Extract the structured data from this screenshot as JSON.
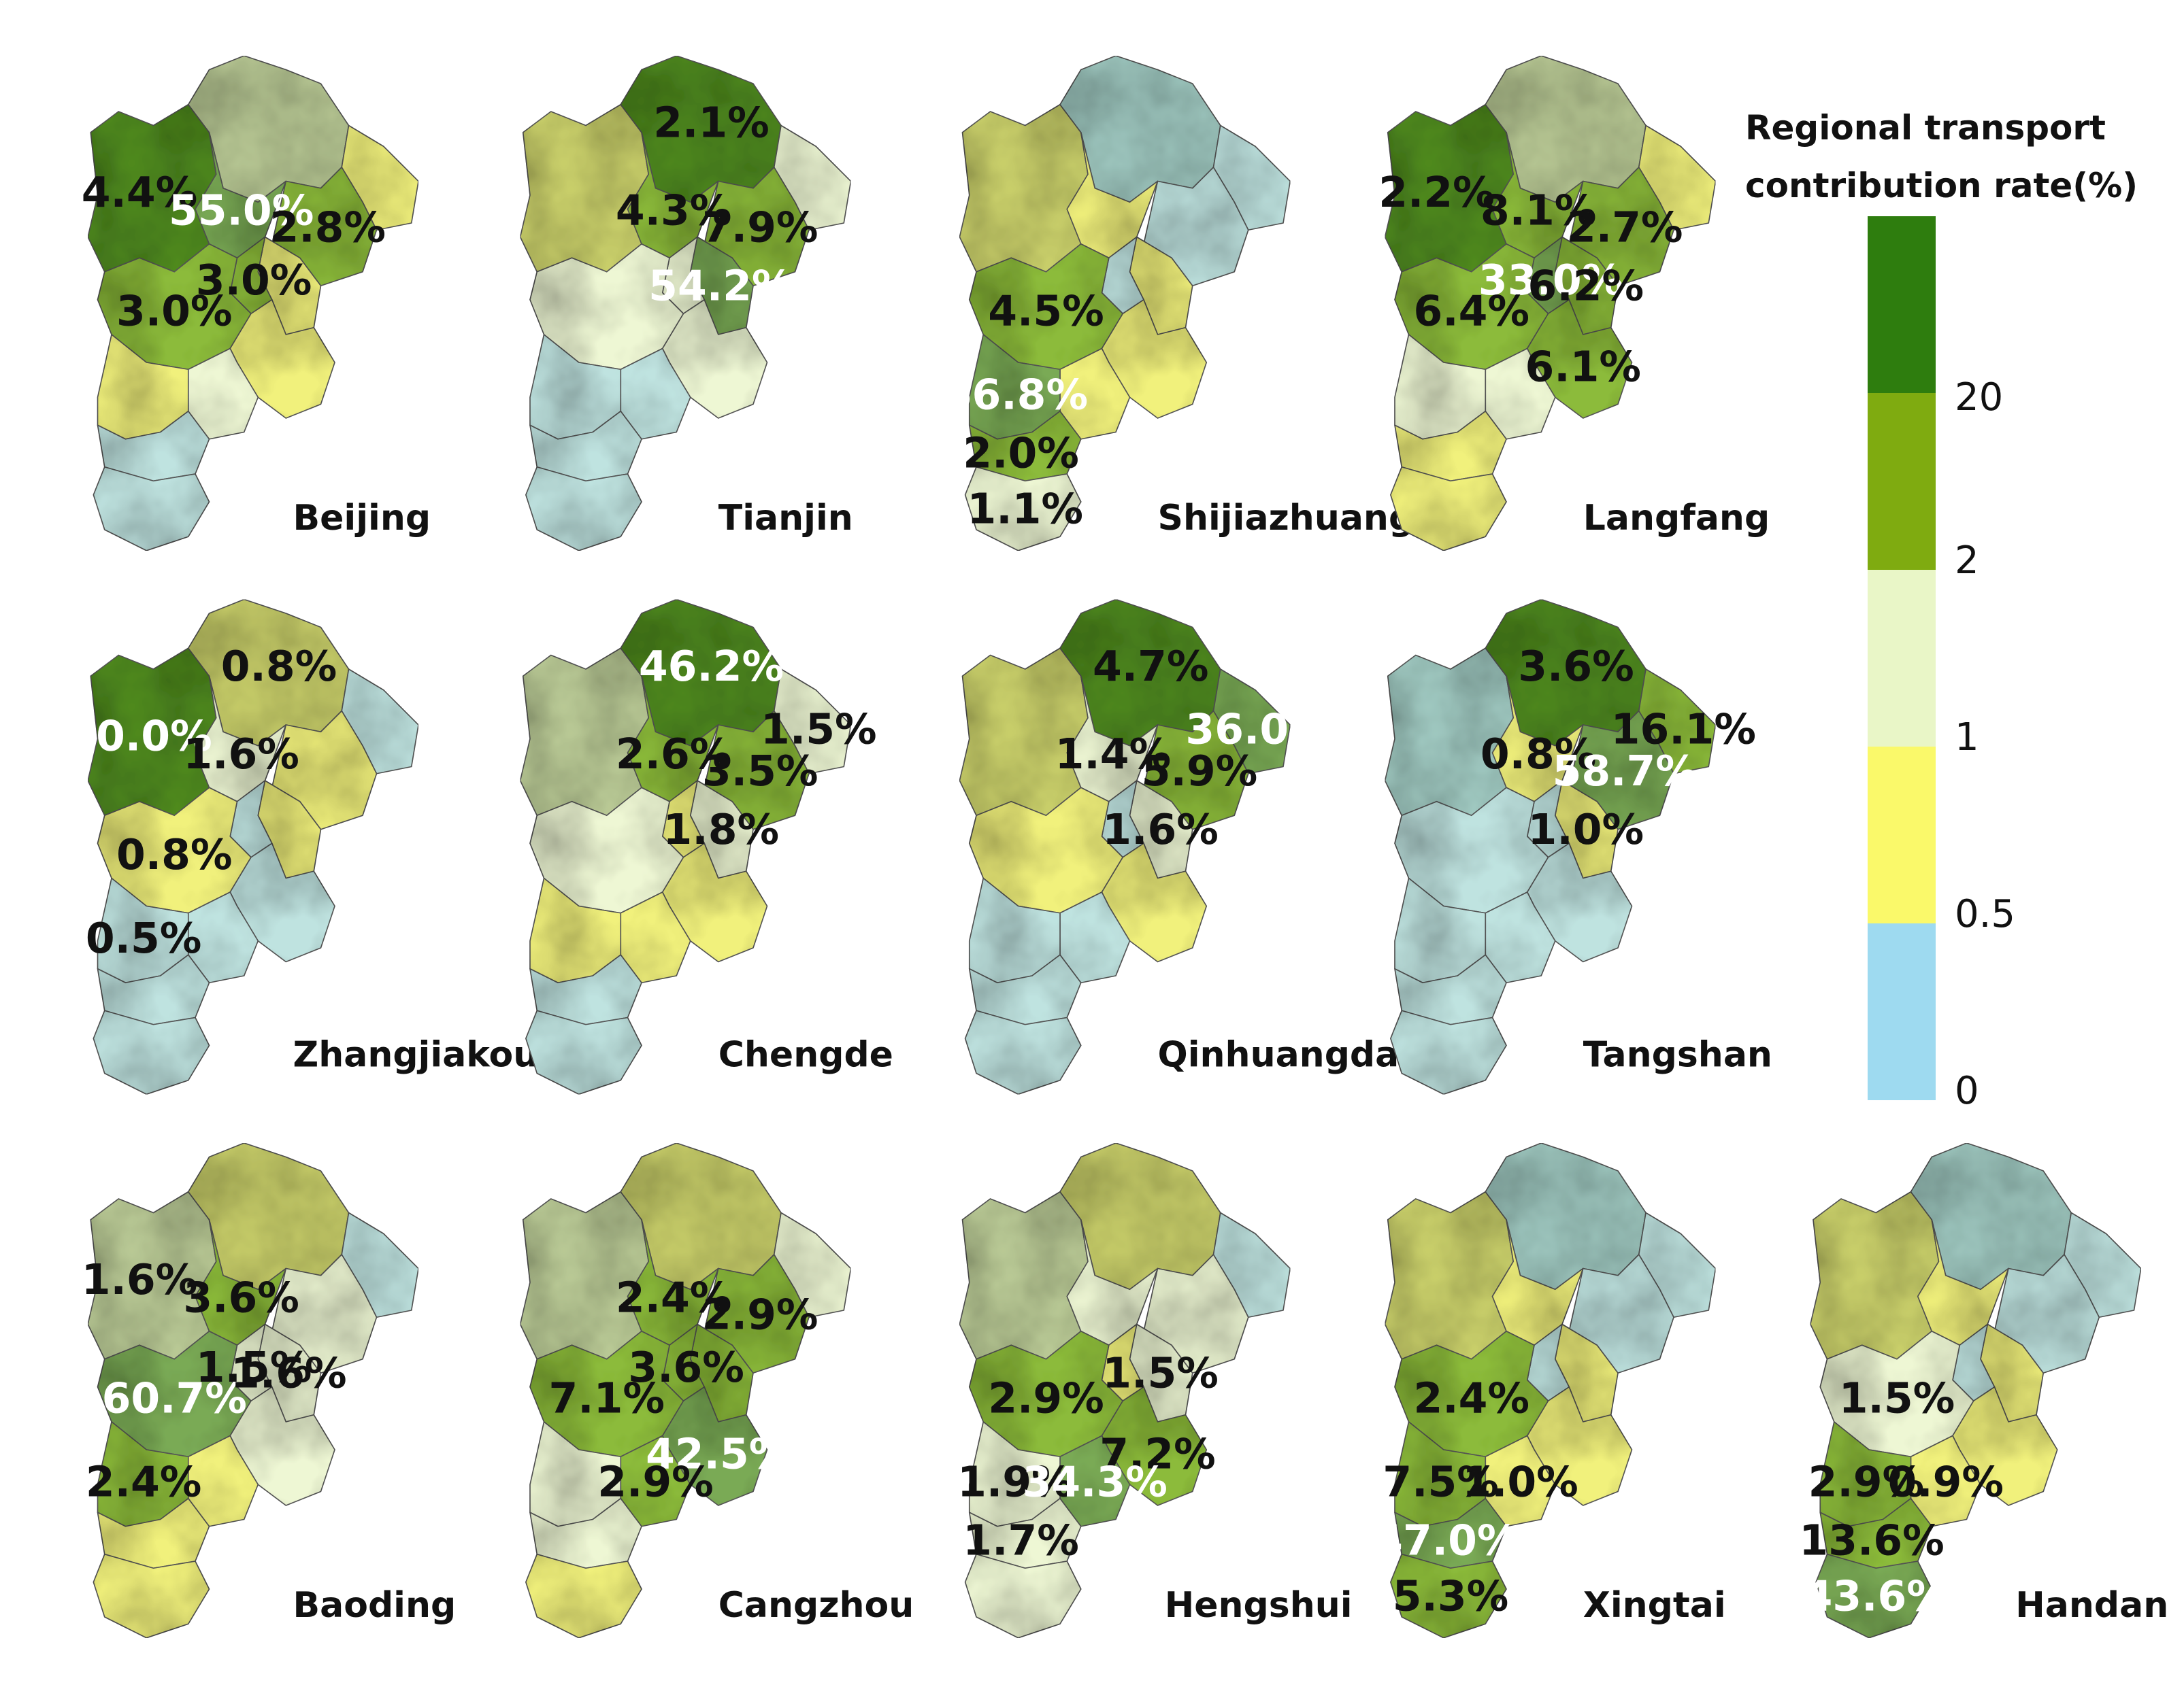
{
  "legend": {
    "title_line1": "Regional transport",
    "title_line2": "contribution rate(%)",
    "ticks": [
      "20",
      "2",
      "1",
      "0.5",
      "0"
    ],
    "bins": [
      {
        "range": ">20",
        "color": "#2e7d0e"
      },
      {
        "range": "2-20",
        "color": "#7fab10"
      },
      {
        "range": "1-2",
        "color": "#e9f6c7"
      },
      {
        "range": "0.5-1",
        "color": "#faf96a"
      },
      {
        "range": "0-0.5",
        "color": "#9edaf0"
      }
    ]
  },
  "maps": [
    {
      "city": "Beijing",
      "labels": [
        {
          "value": "4.4%",
          "white": false
        },
        {
          "value": "55.0%",
          "white": true
        },
        {
          "value": "2.8%",
          "white": false
        },
        {
          "value": "3.0%",
          "white": false
        },
        {
          "value": "3.0%",
          "white": false
        }
      ]
    },
    {
      "city": "Tianjin",
      "labels": [
        {
          "value": "2.1%",
          "white": false
        },
        {
          "value": "4.3%",
          "white": false
        },
        {
          "value": "7.9%",
          "white": false
        },
        {
          "value": "54.2%",
          "white": true
        }
      ]
    },
    {
      "city": "Shijiazhuang",
      "labels": [
        {
          "value": "4.5%",
          "white": false
        },
        {
          "value": "66.8%",
          "white": true
        },
        {
          "value": "2.0%",
          "white": false
        },
        {
          "value": "1.1%",
          "white": false
        }
      ]
    },
    {
      "city": "Langfang",
      "labels": [
        {
          "value": "2.2%",
          "white": false
        },
        {
          "value": "8.1%",
          "white": false
        },
        {
          "value": "2.7%",
          "white": false
        },
        {
          "value": "33.0%",
          "white": true
        },
        {
          "value": "6.2%",
          "white": false
        },
        {
          "value": "6.4%",
          "white": false
        },
        {
          "value": "6.1%",
          "white": false
        }
      ]
    },
    {
      "city": "Zhangjiakou",
      "labels": [
        {
          "value": "60.0%",
          "white": true
        },
        {
          "value": "0.8%",
          "white": false
        },
        {
          "value": "1.6%",
          "white": false
        },
        {
          "value": "0.8%",
          "white": false
        },
        {
          "value": "0.5%",
          "white": false
        }
      ]
    },
    {
      "city": "Chengde",
      "labels": [
        {
          "value": "46.2%",
          "white": true
        },
        {
          "value": "1.5%",
          "white": false
        },
        {
          "value": "2.6%",
          "white": false
        },
        {
          "value": "3.5%",
          "white": false
        },
        {
          "value": "1.8%",
          "white": false
        }
      ]
    },
    {
      "city": "Qinhuangdao",
      "labels": [
        {
          "value": "4.7%",
          "white": false
        },
        {
          "value": "36.0%",
          "white": true
        },
        {
          "value": "1.4%",
          "white": false
        },
        {
          "value": "5.9%",
          "white": false
        },
        {
          "value": "1.6%",
          "white": false
        }
      ]
    },
    {
      "city": "Tangshan",
      "labels": [
        {
          "value": "3.6%",
          "white": false
        },
        {
          "value": "16.1%",
          "white": false
        },
        {
          "value": "0.8%",
          "white": false
        },
        {
          "value": "58.7%",
          "white": true
        },
        {
          "value": "1.0%",
          "white": false
        }
      ]
    },
    {
      "city": "Baoding",
      "labels": [
        {
          "value": "1.6%",
          "white": false
        },
        {
          "value": "3.6%",
          "white": false
        },
        {
          "value": "60.7%",
          "white": true
        },
        {
          "value": "1.5%",
          "white": false
        },
        {
          "value": "1.6%",
          "white": false
        },
        {
          "value": "2.4%",
          "white": false
        }
      ]
    },
    {
      "city": "Cangzhou",
      "labels": [
        {
          "value": "2.4%",
          "white": false
        },
        {
          "value": "2.9%",
          "white": false
        },
        {
          "value": "3.6%",
          "white": false
        },
        {
          "value": "7.1%",
          "white": false
        },
        {
          "value": "42.5%",
          "white": true
        },
        {
          "value": "2.9%",
          "white": false
        }
      ]
    },
    {
      "city": "Hengshui",
      "labels": [
        {
          "value": "1.5%",
          "white": false
        },
        {
          "value": "2.9%",
          "white": false
        },
        {
          "value": "7.2%",
          "white": false
        },
        {
          "value": "1.9%",
          "white": false
        },
        {
          "value": "34.3%",
          "white": true
        },
        {
          "value": "1.7%",
          "white": false
        }
      ]
    },
    {
      "city": "Xingtai",
      "labels": [
        {
          "value": "2.4%",
          "white": false
        },
        {
          "value": "7.5%",
          "white": false
        },
        {
          "value": "1.0%",
          "white": false
        },
        {
          "value": "47.0%",
          "white": true
        },
        {
          "value": "5.3%",
          "white": false
        }
      ]
    },
    {
      "city": "Handan",
      "labels": [
        {
          "value": "1.5%",
          "white": false
        },
        {
          "value": "2.9%",
          "white": false
        },
        {
          "value": "0.9%",
          "white": false
        },
        {
          "value": "13.6%",
          "white": false
        },
        {
          "value": "43.6%",
          "white": true
        }
      ]
    }
  ]
}
